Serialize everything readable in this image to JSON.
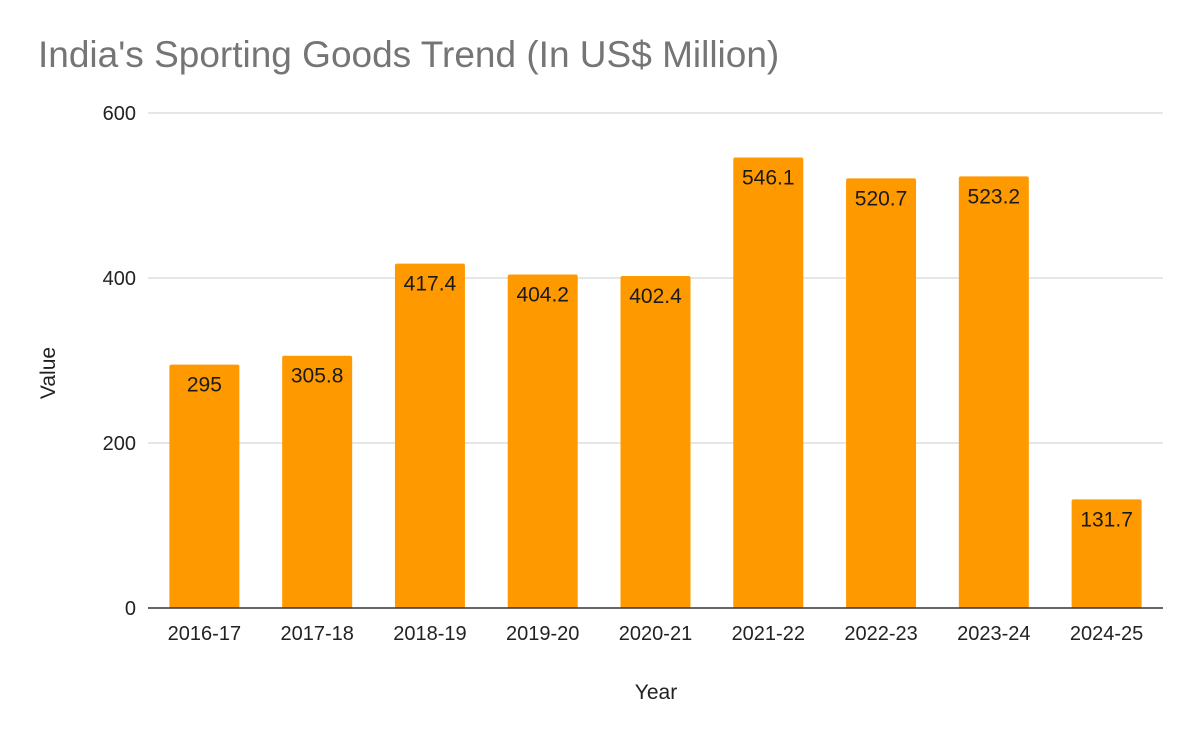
{
  "chart_data": {
    "type": "bar",
    "title": "India's Sporting Goods Trend (In US$ Million)",
    "xlabel": "Year",
    "ylabel": "Value",
    "categories": [
      "2016-17",
      "2017-18",
      "2018-19",
      "2019-20",
      "2020-21",
      "2021-22",
      "2022-23",
      "2023-24",
      "2024-25"
    ],
    "values": [
      295,
      305.8,
      417.4,
      404.2,
      402.4,
      546.1,
      520.7,
      523.2,
      131.7
    ],
    "value_labels": [
      "295",
      "305.8",
      "417.4",
      "404.2",
      "402.4",
      "546.1",
      "520.7",
      "523.2",
      "131.7"
    ],
    "ylim": [
      0,
      600
    ],
    "yticks": [
      0,
      200,
      400,
      600
    ],
    "grid": true,
    "legend": "none",
    "bar_color": "#ff9900",
    "grid_color": "#cccccc",
    "axis_color": "#333333"
  }
}
